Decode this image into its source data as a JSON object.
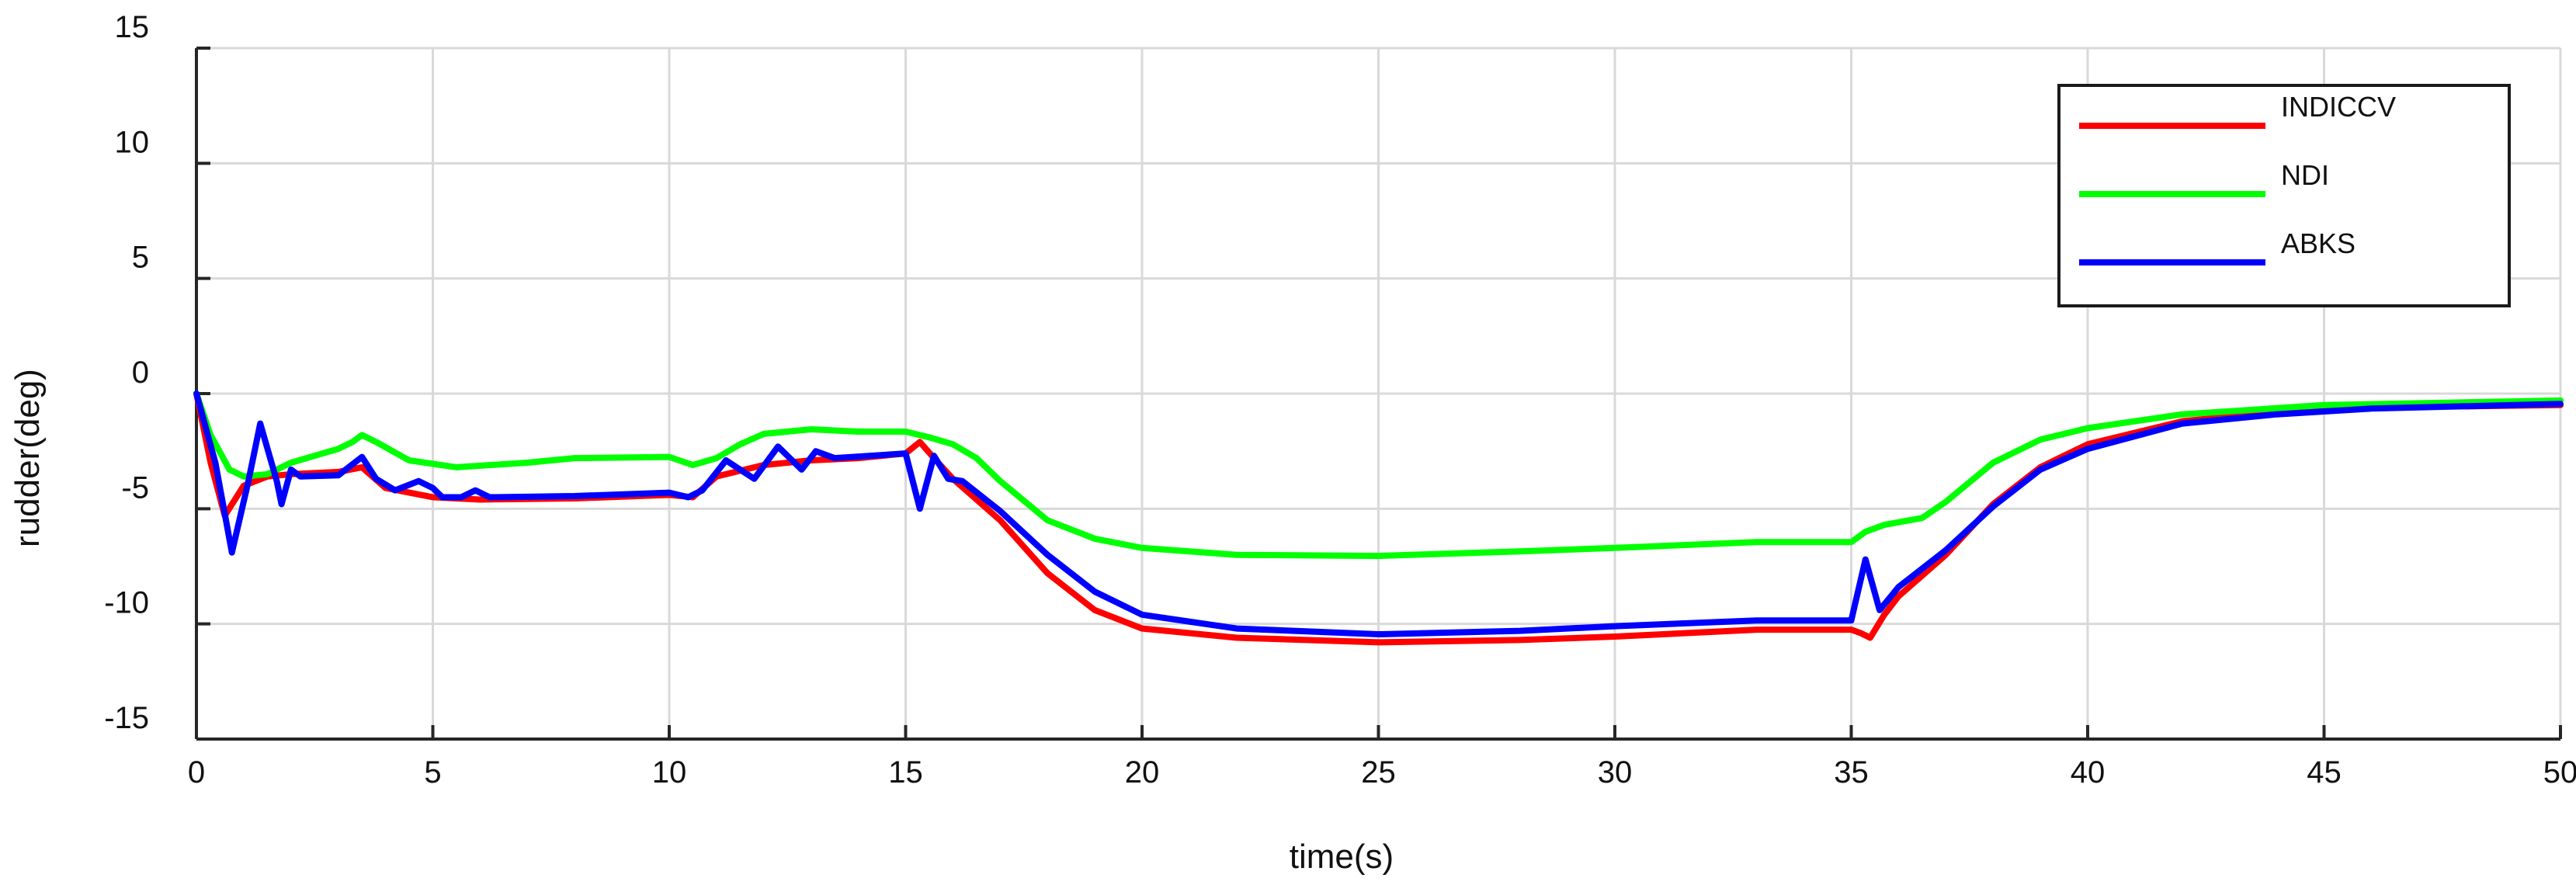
{
  "chart_data": {
    "type": "line",
    "title": "",
    "xlabel": "time(s)",
    "ylabel": "rudder(deg)",
    "xlim": [
      0,
      50
    ],
    "ylim": [
      -15,
      15
    ],
    "x_ticks": [
      0,
      5,
      10,
      15,
      20,
      25,
      30,
      35,
      40,
      45,
      50
    ],
    "y_ticks": [
      15,
      10,
      5,
      0,
      -5,
      -10,
      -15
    ],
    "grid": true,
    "legend_position": "top-right",
    "series": [
      {
        "name": "INDICCV",
        "color": "#ff0000",
        "points": [
          [
            0,
            0
          ],
          [
            0.3,
            -3
          ],
          [
            0.6,
            -5.3
          ],
          [
            1,
            -4
          ],
          [
            1.5,
            -3.6
          ],
          [
            2,
            -3.5
          ],
          [
            3,
            -3.4
          ],
          [
            3.5,
            -3.2
          ],
          [
            4,
            -4.1
          ],
          [
            5,
            -4.5
          ],
          [
            6,
            -4.6
          ],
          [
            8,
            -4.55
          ],
          [
            10,
            -4.4
          ],
          [
            10.5,
            -4.5
          ],
          [
            11,
            -3.6
          ],
          [
            12,
            -3.1
          ],
          [
            13,
            -2.9
          ],
          [
            14,
            -2.8
          ],
          [
            15,
            -2.6
          ],
          [
            15.3,
            -2.1
          ],
          [
            15.6,
            -2.8
          ],
          [
            16,
            -3.7
          ],
          [
            17,
            -5.5
          ],
          [
            18,
            -7.8
          ],
          [
            19,
            -9.4
          ],
          [
            20,
            -10.2
          ],
          [
            22,
            -10.6
          ],
          [
            25,
            -10.8
          ],
          [
            28,
            -10.7
          ],
          [
            30,
            -10.55
          ],
          [
            33,
            -10.25
          ],
          [
            35,
            -10.25
          ],
          [
            35.2,
            -10.4
          ],
          [
            35.4,
            -10.6
          ],
          [
            35.7,
            -9.6
          ],
          [
            36,
            -8.8
          ],
          [
            37,
            -7
          ],
          [
            38,
            -4.8
          ],
          [
            39,
            -3.2
          ],
          [
            40,
            -2.2
          ],
          [
            42,
            -1.2
          ],
          [
            44,
            -0.8
          ],
          [
            46,
            -0.6
          ],
          [
            50,
            -0.5
          ]
        ]
      },
      {
        "name": "NDI",
        "color": "#00ff00",
        "points": [
          [
            0,
            0
          ],
          [
            0.3,
            -1.8
          ],
          [
            0.7,
            -3.3
          ],
          [
            1,
            -3.6
          ],
          [
            1.5,
            -3.5
          ],
          [
            2,
            -3
          ],
          [
            3,
            -2.4
          ],
          [
            3.3,
            -2.1
          ],
          [
            3.5,
            -1.8
          ],
          [
            3.8,
            -2.1
          ],
          [
            4.5,
            -2.9
          ],
          [
            5.5,
            -3.2
          ],
          [
            7,
            -3
          ],
          [
            8,
            -2.8
          ],
          [
            10,
            -2.75
          ],
          [
            10.5,
            -3.1
          ],
          [
            11,
            -2.8
          ],
          [
            11.5,
            -2.2
          ],
          [
            12,
            -1.75
          ],
          [
            13,
            -1.55
          ],
          [
            14,
            -1.65
          ],
          [
            15,
            -1.65
          ],
          [
            15.5,
            -1.9
          ],
          [
            16,
            -2.2
          ],
          [
            16.5,
            -2.8
          ],
          [
            17,
            -3.8
          ],
          [
            18,
            -5.5
          ],
          [
            19,
            -6.3
          ],
          [
            20,
            -6.7
          ],
          [
            22,
            -7
          ],
          [
            25,
            -7.05
          ],
          [
            28,
            -6.85
          ],
          [
            30,
            -6.7
          ],
          [
            33,
            -6.45
          ],
          [
            35,
            -6.45
          ],
          [
            35.3,
            -6
          ],
          [
            35.7,
            -5.7
          ],
          [
            36.5,
            -5.4
          ],
          [
            37,
            -4.7
          ],
          [
            38,
            -3
          ],
          [
            39,
            -2
          ],
          [
            40,
            -1.5
          ],
          [
            42,
            -0.9
          ],
          [
            45,
            -0.5
          ],
          [
            50,
            -0.3
          ]
        ]
      },
      {
        "name": "ABKS",
        "color": "#0000ff",
        "points": [
          [
            0,
            0
          ],
          [
            0.4,
            -3
          ],
          [
            0.75,
            -6.9
          ],
          [
            1.1,
            -3.8
          ],
          [
            1.35,
            -1.3
          ],
          [
            1.7,
            -3.8
          ],
          [
            1.8,
            -4.8
          ],
          [
            2,
            -3.3
          ],
          [
            2.2,
            -3.6
          ],
          [
            3,
            -3.55
          ],
          [
            3.5,
            -2.75
          ],
          [
            3.8,
            -3.7
          ],
          [
            4.2,
            -4.2
          ],
          [
            4.7,
            -3.8
          ],
          [
            5,
            -4.1
          ],
          [
            5.2,
            -4.5
          ],
          [
            5.6,
            -4.5
          ],
          [
            5.9,
            -4.2
          ],
          [
            6.2,
            -4.5
          ],
          [
            8,
            -4.45
          ],
          [
            10,
            -4.3
          ],
          [
            10.4,
            -4.5
          ],
          [
            10.7,
            -4.2
          ],
          [
            11.2,
            -2.9
          ],
          [
            11.8,
            -3.7
          ],
          [
            12.3,
            -2.3
          ],
          [
            12.8,
            -3.3
          ],
          [
            13.1,
            -2.5
          ],
          [
            13.5,
            -2.8
          ],
          [
            15,
            -2.6
          ],
          [
            15.3,
            -5
          ],
          [
            15.6,
            -2.7
          ],
          [
            15.9,
            -3.7
          ],
          [
            16.2,
            -3.8
          ],
          [
            17,
            -5.1
          ],
          [
            18,
            -7
          ],
          [
            19,
            -8.6
          ],
          [
            20,
            -9.6
          ],
          [
            22,
            -10.2
          ],
          [
            25,
            -10.45
          ],
          [
            28,
            -10.3
          ],
          [
            30,
            -10.1
          ],
          [
            33,
            -9.85
          ],
          [
            35,
            -9.85
          ],
          [
            35.3,
            -7.2
          ],
          [
            35.6,
            -9.4
          ],
          [
            36,
            -8.4
          ],
          [
            37,
            -6.8
          ],
          [
            38,
            -4.9
          ],
          [
            39,
            -3.3
          ],
          [
            40,
            -2.4
          ],
          [
            42,
            -1.3
          ],
          [
            44,
            -0.9
          ],
          [
            46,
            -0.65
          ],
          [
            50,
            -0.45
          ]
        ]
      }
    ]
  }
}
